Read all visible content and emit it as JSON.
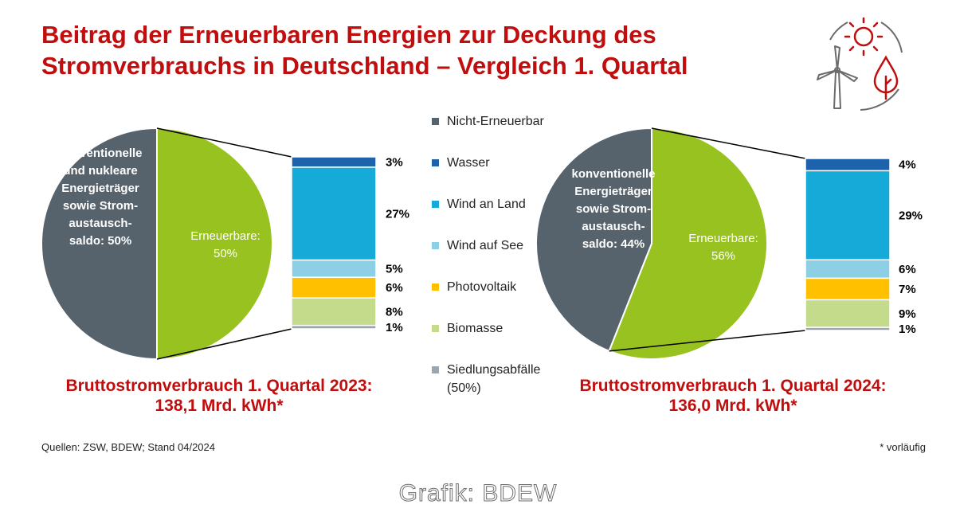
{
  "title": {
    "line1": "Beitrag der Erneuerbaren Energien zur Deckung des",
    "line2": "Stromverbrauchs in Deutschland – Vergleich 1. Quartal"
  },
  "colors": {
    "title": "#c00d0d",
    "nicht_erneuerbar": "#57636c",
    "erneuerbare": "#98c21f",
    "wasser": "#1d63ab",
    "wind_an_land": "#16aad8",
    "wind_auf_see": "#8dd0e6",
    "photovoltaik": "#ffc000",
    "biomasse": "#c5db8c",
    "siedlungsabfaelle": "#9aa6b0"
  },
  "legend": {
    "items": [
      {
        "label": "Nicht-Erneuerbar",
        "color": "#57636c"
      },
      {
        "label": "Wasser",
        "color": "#1d63ab"
      },
      {
        "label": "Wind an Land",
        "color": "#16aad8"
      },
      {
        "label": "Wind auf See",
        "color": "#8dd0e6"
      },
      {
        "label": "Photovoltaik",
        "color": "#ffc000"
      },
      {
        "label": "Biomasse",
        "color": "#c5db8c"
      },
      {
        "label": "Siedlungsabfälle (50%)",
        "color": "#9aa6b0"
      }
    ]
  },
  "chart_data": [
    {
      "type": "pie",
      "slices": [
        {
          "name": "Nicht-Erneuerbar",
          "value": 50,
          "label_lines": [
            "konventionelle",
            "und nukleare",
            "Energieträger",
            "sowie Strom-",
            "austausch-",
            "saldo: 50%"
          ]
        },
        {
          "name": "Erneuerbare",
          "value": 50,
          "label_lines": [
            "Erneuerbare:",
            "50%"
          ]
        }
      ],
      "breakdown": {
        "type": "bar",
        "categories": [
          "Wasser",
          "Wind an Land",
          "Wind auf See",
          "Photovoltaik",
          "Biomasse",
          "Siedlungsabfälle (50%)"
        ],
        "values": [
          3,
          27,
          5,
          6,
          8,
          1
        ],
        "labels": [
          "3%",
          "27%",
          "5%",
          "6%",
          "8%",
          "1%"
        ]
      },
      "caption_line1": "Bruttostromverbrauch 1. Quartal 2023:",
      "caption_line2": "138,1 Mrd. kWh*"
    },
    {
      "type": "pie",
      "slices": [
        {
          "name": "Nicht-Erneuerbar",
          "value": 44,
          "label_lines": [
            "konventionelle",
            "Energieträger",
            "sowie Strom-",
            "austausch-",
            "saldo: 44%"
          ]
        },
        {
          "name": "Erneuerbare",
          "value": 56,
          "label_lines": [
            "Erneuerbare:",
            "56%"
          ]
        }
      ],
      "breakdown": {
        "type": "bar",
        "categories": [
          "Wasser",
          "Wind an Land",
          "Wind auf See",
          "Photovoltaik",
          "Biomasse",
          "Siedlungsabfälle (50%)"
        ],
        "values": [
          4,
          29,
          6,
          7,
          9,
          1
        ],
        "labels": [
          "4%",
          "29%",
          "6%",
          "7%",
          "9%",
          "1%"
        ]
      },
      "caption_line1": "Bruttostromverbrauch 1. Quartal 2024:",
      "caption_line2": "136,0 Mrd. kWh*"
    }
  ],
  "footer": {
    "sources": "Quellen: ZSW, BDEW; Stand 04/2024",
    "note": "* vorläufig",
    "credit": "Grafik: BDEW"
  },
  "logo": {
    "icons": [
      "sun-icon",
      "wind-turbine-icon",
      "drop-icon"
    ]
  }
}
